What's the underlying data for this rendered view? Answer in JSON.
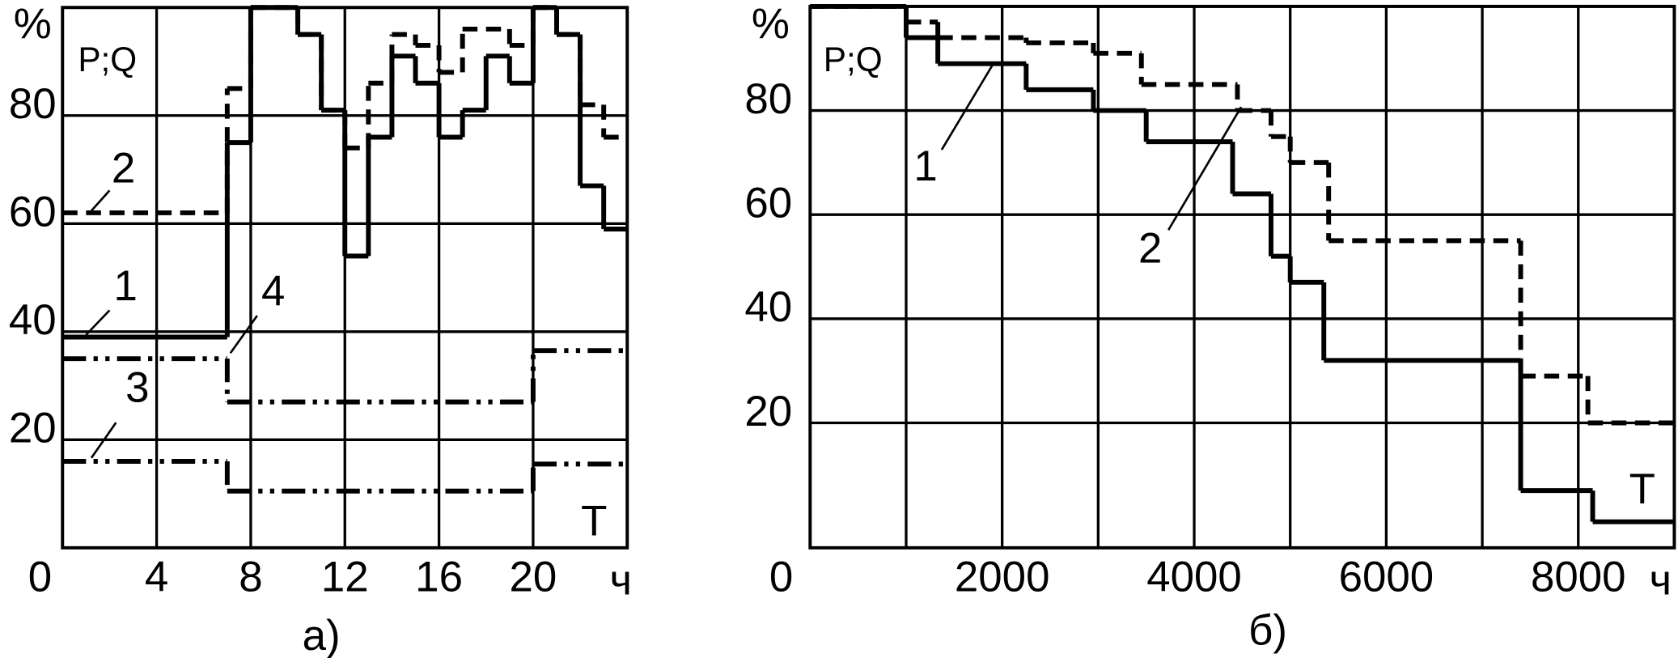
{
  "chart_data": [
    {
      "type": "step",
      "y_unit": "%",
      "y_label": "P;Q",
      "x_label": "T",
      "x_unit": "ч",
      "caption": "а)",
      "xlim": [
        0,
        24
      ],
      "ylim": [
        0,
        100
      ],
      "xticks": [
        0,
        4,
        8,
        12,
        16,
        20
      ],
      "yticks": [
        20,
        40,
        60,
        80
      ],
      "grid": true,
      "color": "#000000",
      "series": [
        {
          "name": "1",
          "style": "solid",
          "x": [
            0,
            7,
            8,
            10,
            11,
            12,
            13,
            14,
            15,
            16,
            17,
            18,
            19,
            20,
            21,
            22,
            23
          ],
          "values": [
            39,
            75,
            100,
            95,
            81,
            54,
            76,
            91,
            86,
            76,
            81,
            91,
            86,
            100,
            95,
            67,
            59
          ]
        },
        {
          "name": "2",
          "style": "dashed",
          "x": [
            0,
            7,
            8,
            10,
            11,
            12,
            13,
            14,
            15,
            16,
            17,
            18,
            19,
            20,
            21,
            22,
            23
          ],
          "values": [
            62,
            85,
            100,
            95,
            81,
            74,
            86,
            95,
            93,
            88,
            96,
            96,
            93,
            100,
            95,
            82,
            76
          ]
        },
        {
          "name": "3",
          "style": "dash-dot-dot",
          "x": [
            0,
            7,
            20
          ],
          "values": [
            16,
            10.5,
            15.5
          ]
        },
        {
          "name": "4",
          "style": "dash-dot-dot",
          "x": [
            0,
            7,
            20
          ],
          "values": [
            35,
            27,
            36.5
          ]
        }
      ]
    },
    {
      "type": "step",
      "y_unit": "%",
      "y_label": "P;Q",
      "x_label": "T",
      "x_unit": "ч",
      "caption": "б)",
      "xlim": [
        0,
        9000
      ],
      "ylim": [
        -4,
        100
      ],
      "xticks": [
        0,
        2000,
        4000,
        6000,
        8000
      ],
      "minor_xticks": [
        1000,
        3000,
        5000,
        7000
      ],
      "yticks": [
        20,
        40,
        60,
        80
      ],
      "grid": true,
      "color": "#000000",
      "series": [
        {
          "name": "1",
          "style": "solid",
          "x": [
            0,
            1000,
            1330,
            2250,
            2950,
            3500,
            4400,
            4800,
            5000,
            5350,
            7400,
            8150
          ],
          "values": [
            100,
            94,
            89,
            84,
            80,
            74,
            64,
            52,
            47,
            32,
            7,
            1
          ]
        },
        {
          "name": "2",
          "style": "dashed",
          "x": [
            0,
            1000,
            1330,
            2250,
            2950,
            3450,
            4450,
            4800,
            5000,
            5400,
            7400,
            8100
          ],
          "values": [
            100,
            97,
            94,
            93,
            91,
            85,
            80,
            75,
            70,
            55,
            29,
            20
          ]
        }
      ]
    }
  ]
}
